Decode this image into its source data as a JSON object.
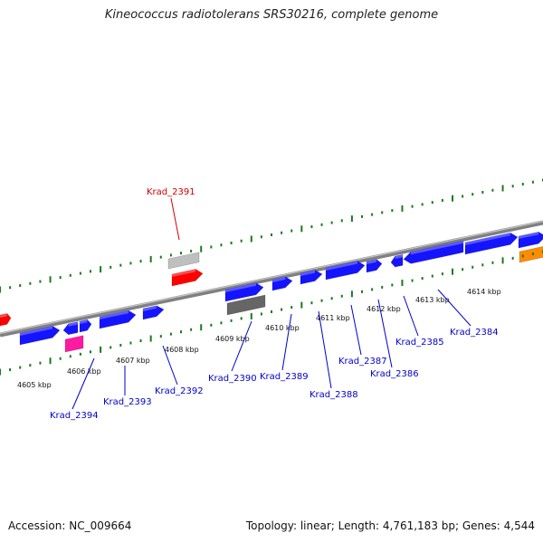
{
  "title": "Kineococcus radiotolerans SRS30216, complete genome",
  "footer": {
    "accession": "Accession: NC_009664",
    "topology": "Topology: linear; Length: 4,761,183 bp; Genes: 4,544"
  },
  "colors": {
    "backbone": "#808080",
    "tick": "#1a7a1a",
    "gene_default": "#1414ff",
    "gene_highlight": "#ff0000",
    "gene_pink": "#ff1aa0",
    "gene_gray": "#666666",
    "gene_light_gray": "#bfbfbf",
    "gene_orange": "#ff8c00",
    "label_default": "#0000cc",
    "label_highlight": "#cc0000"
  },
  "scale_ticks": [
    {
      "label": "4605 kbp"
    },
    {
      "label": "4606 kbp"
    },
    {
      "label": "4607 kbp"
    },
    {
      "label": "4608 kbp"
    },
    {
      "label": "4609 kbp"
    },
    {
      "label": "4610 kbp"
    },
    {
      "label": "4611 kbp"
    },
    {
      "label": "4612 kbp"
    },
    {
      "label": "4613 kbp"
    },
    {
      "label": "4614 kbp"
    }
  ],
  "gene_labels": [
    {
      "label": "Krad_2391",
      "highlight": true
    },
    {
      "label": "Krad_2394",
      "highlight": false
    },
    {
      "label": "Krad_2393",
      "highlight": false
    },
    {
      "label": "Krad_2392",
      "highlight": false
    },
    {
      "label": "Krad_2390",
      "highlight": false
    },
    {
      "label": "Krad_2389",
      "highlight": false
    },
    {
      "label": "Krad_2388",
      "highlight": false
    },
    {
      "label": "Krad_2387",
      "highlight": false
    },
    {
      "label": "Krad_2386",
      "highlight": false
    },
    {
      "label": "Krad_2385",
      "highlight": false
    },
    {
      "label": "Krad_2384",
      "highlight": false
    }
  ]
}
